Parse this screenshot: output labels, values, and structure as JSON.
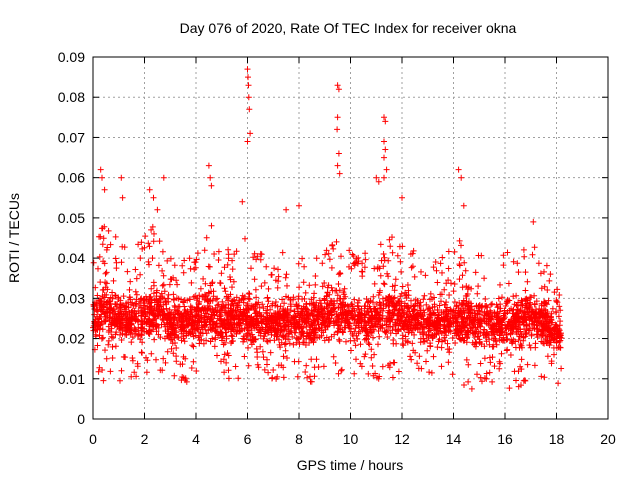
{
  "chart_data": {
    "type": "scatter",
    "title": "Day 076 of 2020, Rate Of TEC Index for receiver okna",
    "xlabel": "GPS time / hours",
    "ylabel": "ROTI / TECUs",
    "xlim": [
      0,
      20
    ],
    "ylim": [
      0,
      0.09
    ],
    "x_ticks": [
      0,
      2,
      4,
      6,
      8,
      10,
      12,
      14,
      16,
      18,
      20
    ],
    "x_tick_labels": [
      "0",
      "2",
      "4",
      "6",
      "8",
      "10",
      "12",
      "14",
      "16",
      "18",
      "20"
    ],
    "y_ticks": [
      0,
      0.01,
      0.02,
      0.03,
      0.04,
      0.05,
      0.06,
      0.07,
      0.08,
      0.09
    ],
    "y_tick_labels": [
      "0",
      "0.01",
      "0.02",
      "0.03",
      "0.04",
      "0.05",
      "0.06",
      "0.07",
      "0.08",
      "0.09"
    ],
    "grid": true,
    "marker": "+",
    "marker_color": "#ff0000",
    "x_range_of_data": [
      0,
      18.2
    ],
    "envelope": {
      "x": [
        0,
        0.5,
        1,
        1.5,
        2,
        2.5,
        3,
        3.5,
        4,
        4.5,
        5,
        5.5,
        6,
        6.5,
        7,
        7.5,
        8,
        8.5,
        9,
        9.5,
        10,
        10.5,
        11,
        11.5,
        12,
        12.5,
        13,
        13.5,
        14,
        14.5,
        15,
        15.5,
        16,
        16.5,
        17,
        17.5,
        18,
        18.2
      ],
      "low": [
        0.012,
        0.008,
        0.009,
        0.01,
        0.01,
        0.011,
        0.01,
        0.008,
        0.01,
        0.01,
        0.01,
        0.01,
        0.005,
        0.01,
        0.01,
        0.009,
        0.01,
        0.009,
        0.01,
        0.011,
        0.01,
        0.011,
        0.008,
        0.01,
        0.009,
        0.01,
        0.008,
        0.009,
        0.007,
        0.006,
        0.008,
        0.008,
        0.007,
        0.008,
        0.008,
        0.009,
        0.007,
        0.012
      ],
      "core": [
        0.022,
        0.023,
        0.021,
        0.022,
        0.021,
        0.022,
        0.022,
        0.021,
        0.022,
        0.022,
        0.021,
        0.022,
        0.022,
        0.021,
        0.021,
        0.021,
        0.021,
        0.021,
        0.022,
        0.024,
        0.023,
        0.02,
        0.023,
        0.023,
        0.022,
        0.022,
        0.021,
        0.021,
        0.021,
        0.021,
        0.022,
        0.021,
        0.022,
        0.021,
        0.022,
        0.021,
        0.02,
        0.02
      ],
      "high": [
        0.045,
        0.055,
        0.048,
        0.045,
        0.05,
        0.055,
        0.043,
        0.045,
        0.045,
        0.055,
        0.045,
        0.047,
        0.05,
        0.045,
        0.045,
        0.045,
        0.047,
        0.045,
        0.05,
        0.05,
        0.045,
        0.045,
        0.05,
        0.05,
        0.05,
        0.045,
        0.045,
        0.043,
        0.05,
        0.047,
        0.045,
        0.043,
        0.045,
        0.047,
        0.048,
        0.045,
        0.035,
        0.032
      ]
    },
    "peak_points": [
      {
        "x": 0.3,
        "y": 0.062
      },
      {
        "x": 0.35,
        "y": 0.06
      },
      {
        "x": 0.45,
        "y": 0.057
      },
      {
        "x": 1.1,
        "y": 0.06
      },
      {
        "x": 1.15,
        "y": 0.055
      },
      {
        "x": 2.2,
        "y": 0.057
      },
      {
        "x": 2.35,
        "y": 0.055
      },
      {
        "x": 2.5,
        "y": 0.052
      },
      {
        "x": 2.75,
        "y": 0.06
      },
      {
        "x": 4.5,
        "y": 0.063
      },
      {
        "x": 4.55,
        "y": 0.06
      },
      {
        "x": 4.6,
        "y": 0.058
      },
      {
        "x": 5.8,
        "y": 0.054
      },
      {
        "x": 6.0,
        "y": 0.087
      },
      {
        "x": 6.02,
        "y": 0.085
      },
      {
        "x": 6.04,
        "y": 0.083
      },
      {
        "x": 6.05,
        "y": 0.08
      },
      {
        "x": 6.07,
        "y": 0.077
      },
      {
        "x": 6.1,
        "y": 0.071
      },
      {
        "x": 6.0,
        "y": 0.069
      },
      {
        "x": 7.5,
        "y": 0.052
      },
      {
        "x": 8.0,
        "y": 0.053
      },
      {
        "x": 9.5,
        "y": 0.083
      },
      {
        "x": 9.55,
        "y": 0.082
      },
      {
        "x": 9.5,
        "y": 0.075
      },
      {
        "x": 9.48,
        "y": 0.072
      },
      {
        "x": 9.55,
        "y": 0.066
      },
      {
        "x": 9.5,
        "y": 0.063
      },
      {
        "x": 9.58,
        "y": 0.061
      },
      {
        "x": 11.0,
        "y": 0.06
      },
      {
        "x": 11.1,
        "y": 0.059
      },
      {
        "x": 11.3,
        "y": 0.075
      },
      {
        "x": 11.35,
        "y": 0.074
      },
      {
        "x": 11.3,
        "y": 0.069
      },
      {
        "x": 11.35,
        "y": 0.067
      },
      {
        "x": 11.3,
        "y": 0.065
      },
      {
        "x": 11.4,
        "y": 0.062
      },
      {
        "x": 11.3,
        "y": 0.06
      },
      {
        "x": 12.0,
        "y": 0.055
      },
      {
        "x": 14.2,
        "y": 0.062
      },
      {
        "x": 14.3,
        "y": 0.06
      },
      {
        "x": 14.4,
        "y": 0.053
      },
      {
        "x": 17.1,
        "y": 0.049
      }
    ]
  }
}
